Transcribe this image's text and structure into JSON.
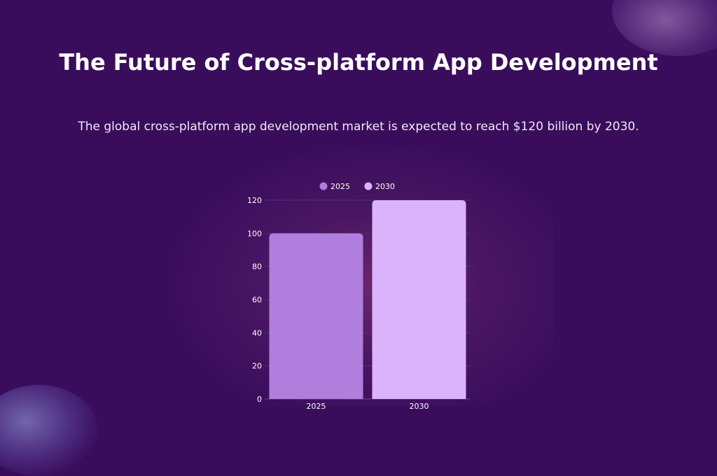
{
  "title": "The Future of Cross-platform App Development",
  "subtitle": "The global cross-platform app development market is expected to reach $120 billion by 2030.",
  "chart_data": {
    "type": "bar",
    "categories": [
      "2025",
      "2030"
    ],
    "values": [
      100,
      120
    ],
    "colors": [
      "#b07edd",
      "#dbb3fa"
    ],
    "legend": [
      "2025",
      "2030"
    ],
    "legend_position": "top-center",
    "ylim": [
      0,
      120
    ],
    "yticks": [
      0,
      20,
      40,
      60,
      80,
      100,
      120
    ],
    "grid": true,
    "xlabel": "",
    "ylabel": ""
  },
  "colors": {
    "background": "#3a0d5c",
    "grid": "#5a2e7a",
    "axis_text": "#ffffff"
  }
}
